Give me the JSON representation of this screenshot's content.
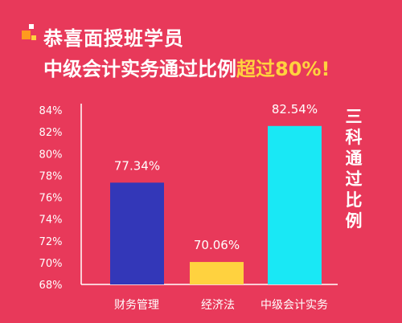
{
  "headline": {
    "line1": "恭喜面授班学员",
    "line2_prefix": "中级会计实务通过比例",
    "line2_highlight": "超过80%!"
  },
  "side_note": "三科通过比例",
  "colors": {
    "background": "#e8395a",
    "highlight": "#ffd23f",
    "logo_orange": "#ff9a1e",
    "logo_yellow": "#ffd23f",
    "logo_white": "#ffffff"
  },
  "chart_data": {
    "type": "bar",
    "categories": [
      "财务管理",
      "经济法",
      "中级会计实务"
    ],
    "values": [
      77.34,
      70.06,
      82.54
    ],
    "value_labels": [
      "77.34%",
      "70.06%",
      "82.54%"
    ],
    "bar_colors": [
      "#3337b8",
      "#ffd23f",
      "#19e8f5"
    ],
    "ylim": [
      68,
      84
    ],
    "yticks": [
      68,
      70,
      72,
      74,
      76,
      78,
      80,
      82,
      84
    ],
    "ytick_labels": [
      "68%",
      "70%",
      "72%",
      "74%",
      "76%",
      "78%",
      "80%",
      "82%",
      "84%"
    ],
    "title": "",
    "xlabel": "",
    "ylabel": "",
    "grid": false
  }
}
